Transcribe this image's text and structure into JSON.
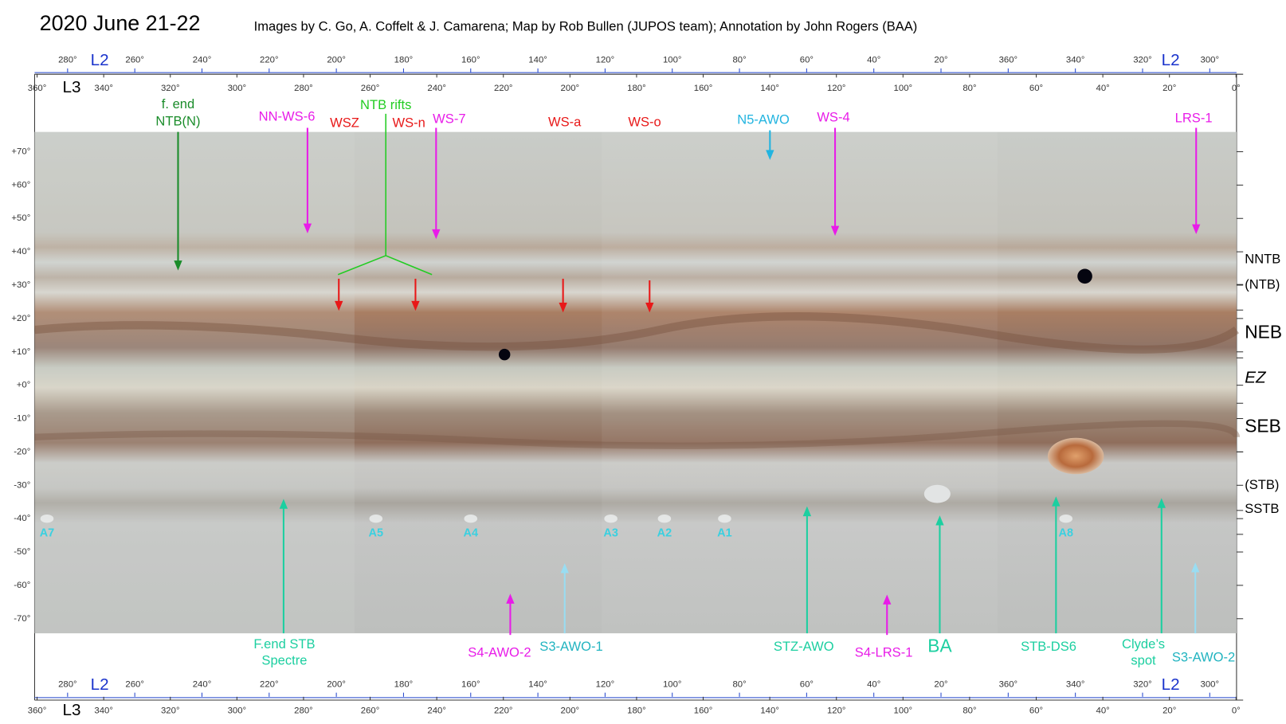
{
  "header": {
    "title": "2020 June 21-22",
    "credit": "Images by C. Go, A. Coffelt & J. Camarena;  Map by Rob Bullen (JUPOS team);  Annotation by John Rogers (BAA)"
  },
  "axes": {
    "l2_label": "L2",
    "l3_label": "L3",
    "l2_ticks": [
      "280°",
      "260°",
      "240°",
      "220°",
      "200°",
      "180°",
      "160°",
      "140°",
      "120°",
      "100°",
      "80°",
      "60°",
      "40°",
      "20°",
      "360°",
      "340°",
      "320°",
      "300°"
    ],
    "l3_ticks": [
      "360°",
      "340°",
      "320°",
      "300°",
      "280°",
      "260°",
      "240°",
      "220°",
      "200°",
      "180°",
      "160°",
      "140°",
      "120°",
      "100°",
      "80°",
      "60°",
      "40°",
      "20°",
      "0°"
    ],
    "latitudes": [
      "+70°",
      "+60°",
      "+50°",
      "+40°",
      "+30°",
      "+20°",
      "+10°",
      "+0°",
      "-10°",
      "-20°",
      "-30°",
      "-40°",
      "-50°",
      "-60°",
      "-70°"
    ]
  },
  "bands": [
    "NNTB",
    "(NTB)",
    "NEB",
    "EZ",
    "SEB",
    "(STB)",
    "SSTB"
  ],
  "top_annotations": [
    {
      "lines": [
        "f. end",
        "NTB(N)"
      ]
    },
    {
      "lines": [
        "NN-WS-6"
      ]
    },
    {
      "lines": [
        "WSZ"
      ]
    },
    {
      "lines": [
        "NTB rifts"
      ]
    },
    {
      "lines": [
        "WS-n"
      ]
    },
    {
      "lines": [
        "WS-7"
      ]
    },
    {
      "lines": [
        "WS-a"
      ]
    },
    {
      "lines": [
        "WS-o"
      ]
    },
    {
      "lines": [
        "N5-AWO"
      ]
    },
    {
      "lines": [
        "WS-4"
      ]
    },
    {
      "lines": [
        "LRS-1"
      ]
    }
  ],
  "bottom_annotations": [
    {
      "lines": [
        "F.end STB",
        "Spectre"
      ]
    },
    {
      "lines": [
        "S4-AWO-2"
      ]
    },
    {
      "lines": [
        "S3-AWO-1"
      ]
    },
    {
      "lines": [
        "STZ-AWO"
      ]
    },
    {
      "lines": [
        "S4-LRS-1"
      ]
    },
    {
      "lines": [
        "BA"
      ]
    },
    {
      "lines": [
        "STB-DS6"
      ]
    },
    {
      "lines": [
        "Clyde’s",
        "spot"
      ]
    },
    {
      "lines": [
        "S3-AWO-2"
      ]
    }
  ],
  "ovals": [
    "A7",
    "A5",
    "A4",
    "A3",
    "A2",
    "A1",
    "A8"
  ]
}
